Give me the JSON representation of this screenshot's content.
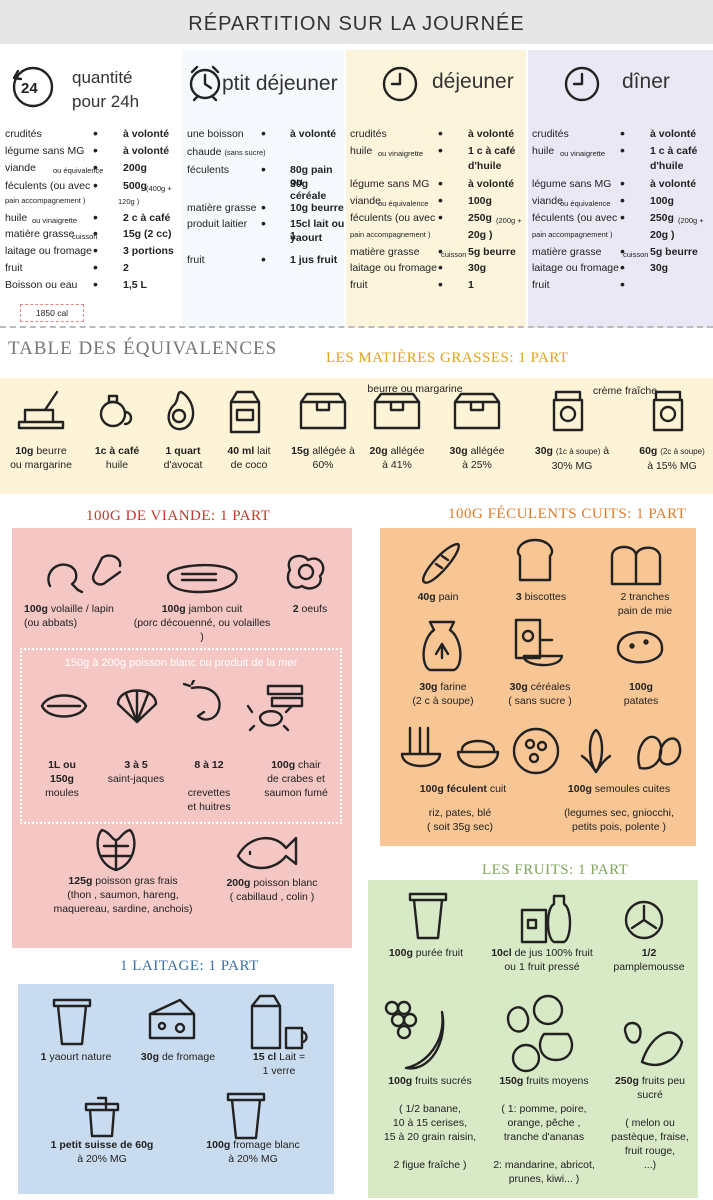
{
  "header": {
    "title": "RÉPARTITION SUR LA JOURNÉE"
  },
  "col0": {
    "title_line1": "quantité",
    "title_line2": "pour 24h",
    "icon": "24-hour-icon",
    "rows": [
      [
        "crudités",
        "à volonté"
      ],
      [
        "légume sans MG",
        "à volonté"
      ],
      [
        "viande",
        "200g"
      ],
      [
        "féculents (ou avec",
        "500g"
      ],
      [
        "huile",
        "2 c à café"
      ],
      [
        "matière grasse",
        "15g (2 cc)"
      ],
      [
        "laitage ou fromage",
        "3 portions"
      ],
      [
        "fruit",
        "2"
      ],
      [
        "Boisson  ou eau",
        "1,5 L"
      ]
    ],
    "viande_small": "ou équivalence",
    "feculent_extra": "pain accompagnement )",
    "feculent_small": "(400g +",
    "feculent_small2": "120g )",
    "huile_small": "ou vinaigrette",
    "mg_small": "cuisson",
    "calories": "1850 cal"
  },
  "col1": {
    "title": "ptit déjeuner",
    "icon": "alarm-clock-icon",
    "r1n": "une boisson",
    "r1n2": "chaude",
    "r1s": "(sans sucre)",
    "r1v": "à volonté",
    "r2n": "féculents",
    "r2v1": "80g pain ou",
    "r2v2": "30g céréale",
    "r3n": "matière grasse",
    "r3v": "10g beurre",
    "r4n": "produit laitier",
    "r4v1": "15cl lait ou 1",
    "r4v2": "yaourt",
    "r5n": "fruit",
    "r5v": "1 jus fruit"
  },
  "col2": {
    "title": "déjeuner",
    "icon": "clock-icon",
    "rows": [
      [
        "crudités",
        "à volonté"
      ],
      [
        "huile",
        "1 c à café"
      ],
      [
        "",
        "d'huile"
      ],
      [
        "légume sans MG",
        "à volonté"
      ],
      [
        "viande",
        "100g"
      ],
      [
        "féculents (ou avec",
        "250g"
      ],
      [
        "",
        "20g )"
      ],
      [
        "matière grasse",
        "5g beurre"
      ],
      [
        "laitage ou fromage",
        "30g"
      ],
      [
        "fruit",
        "1"
      ]
    ],
    "huile_small": "ou vinaigrette",
    "viande_small": "ou équivalence",
    "fec_l2": "pain accompagnement )",
    "fec_small": "(200g +",
    "mg_small": "cuisson"
  },
  "col3": {
    "title": "dîner",
    "icon": "clock-icon",
    "rows": [
      [
        "crudités",
        "à volonté"
      ],
      [
        "huile",
        "1 c à café"
      ],
      [
        "",
        "d'huile"
      ],
      [
        "légume sans MG",
        "à volonté"
      ],
      [
        "viande",
        "100g"
      ],
      [
        "féculents (ou avec",
        "250g"
      ],
      [
        "",
        "20g )"
      ],
      [
        "matière grasse",
        "5g beurre"
      ],
      [
        "laitage ou fromage",
        "30g"
      ],
      [
        "fruit",
        ""
      ]
    ],
    "huile_small": "ou vinaigrette",
    "viande_small": "ou équivalence",
    "fec_l2": "pain accompagnement )",
    "fec_small": "(200g +",
    "mg_small": "cuisson"
  },
  "equivalences_title": "TABLE DES ÉQUIVALENCES",
  "fats": {
    "title": "LES MATIÈRES GRASSES: 1 PART",
    "sub_beurre": "beurre ou margarine",
    "sub_creme": "crème fraîche",
    "items": [
      {
        "q": "10g",
        "l1": "beurre",
        "l2": "ou margarine",
        "icon": "butter-icon"
      },
      {
        "q": "1c à café",
        "l1": "",
        "l2": "huile",
        "icon": "oil-jug-icon"
      },
      {
        "q": "1 quart",
        "l1": "",
        "l2": "d'avocat",
        "icon": "avocado-icon"
      },
      {
        "q": "40 ml",
        "l1": "lait",
        "l2": "de coco",
        "icon": "milk-carton-icon"
      },
      {
        "q": "15g",
        "l1": "allégée à",
        "l2": "60%",
        "icon": "butter-tub-icon"
      },
      {
        "q": "20g",
        "l1": "allégée",
        "l2": "à 41%",
        "icon": "butter-tub-icon"
      },
      {
        "q": "30g",
        "l1": "allégée",
        "l2": "à 25%",
        "icon": "butter-tub-icon"
      },
      {
        "q": "30g",
        "s": "(1c à soupe)",
        "l1": "à",
        "l2": "30% MG",
        "icon": "jar-icon"
      },
      {
        "q": "60g",
        "s": "(2c à soupe)",
        "l1": "",
        "l2": "à 15% MG",
        "icon": "jar-icon"
      }
    ]
  },
  "meat": {
    "title": "100G DE VIANDE: 1 PART",
    "i1": "volaille / lapin",
    "i1q": "100g",
    "i1b": "(ou abbats)",
    "i2q": "100g",
    "i2": "jambon cuit",
    "i2b": "(porc découenné, ou volailles )",
    "i3q": "2",
    "i3": "oeufs",
    "fish_title": "150g à 200g  poisson blanc  ou produit de la mer",
    "f1": "1L ou",
    "f1b": "150g",
    "f1c": "moules",
    "f2": "3 à 5",
    "f2b": "saint-jaques",
    "f3": "8 à 12",
    "f3b": "crevettes",
    "f3c": "et huitres",
    "f4q": "100g",
    "f4": "chair",
    "f4b": "de crabes  et",
    "f4c": "saumon fumé",
    "g1q": "125g",
    "g1": "poisson gras frais",
    "g1b": "(thon , saumon, hareng,",
    "g1c": "maquereau, sardine, anchois)",
    "g2q": "200g",
    "g2": "poisson blanc",
    "g2b": "( cabillaud , colin )"
  },
  "starch": {
    "title": "100G FÉCULENTS CUITS: 1 PART",
    "s1q": "40g",
    "s1": "pain",
    "s2q": "3",
    "s2": "biscottes",
    "s3a": "2  tranches",
    "s3b": "pain de mie",
    "s4q": "30g",
    "s4": "farine",
    "s4b": "(2 c à soupe)",
    "s5q": "30g",
    "s5": "céréales",
    "s5b": "( sans sucre )",
    "s6q": "100g",
    "s6": "patates",
    "s7q": "100g",
    "s7": "féculent",
    "s7s": "cuit",
    "s7b": "riz, pates, blé",
    "s7c": "( soit 35g sec)",
    "s8q": "100g",
    "s8": "semoules cuites",
    "s8b": "(legumes sec, gniocchi,",
    "s8c": "petits pois, polente )"
  },
  "fruits": {
    "title": "LES FRUITS: 1 PART",
    "a1q": "100g",
    "a1": "purée fruit",
    "a2q": "10cl",
    "a2": "de jus 100% fruit",
    "a2b": "ou 1 fruit pressé",
    "a3": "1/2",
    "a3b": "pamplemousse",
    "b1q": "100g",
    "b1": "fruits sucrés",
    "b1b": "( 1/2 banane,",
    "b1c": "10 à 15 cerises,",
    "b1d": "15 à 20 grain raisin,",
    "b1e": "2 figue fraîche  )",
    "b2q": "150g",
    "b2": "fruits moyens",
    "b2b": "( 1: pomme, poire,",
    "b2c": "orange, pêche ,",
    "b2d": "tranche d'ananas",
    "b2e": "2: mandarine, abricot,",
    "b2f": "prunes, kiwi... )",
    "b3q": "250g",
    "b3": "fruits peu",
    "b3b": "sucré",
    "b3c": "( melon ou",
    "b3d": "pastèque, fraise,",
    "b3e": "fruit rouge,",
    "b3f": "...)"
  },
  "dairy": {
    "title": "1 LAITAGE: 1 PART",
    "d1q": "1",
    "d1": "yaourt nature",
    "d2q": "30g",
    "d2": "de fromage",
    "d3q": "15 cl",
    "d3": "Lait",
    "d3s": "=",
    "d3b": "1 verre",
    "d4": "1 petit suisse de 60g",
    "d4b": "à 20% MG",
    "d5q": "100g",
    "d5": "fromage blanc",
    "d5b": "à 20% MG"
  },
  "colors": {
    "fat_bg": "#fdf3d6",
    "meat_bg": "#f4c6c4",
    "starch_bg": "#f8c594",
    "fruit_bg": "#d8e9c6",
    "dairy_bg": "#c8dbef",
    "meat_title": "#c0392b",
    "starch_title": "#e07b2a",
    "fruit_title": "#7ea55b",
    "dairy_title": "#3b6fa8",
    "fat_title": "#e0a21a"
  }
}
